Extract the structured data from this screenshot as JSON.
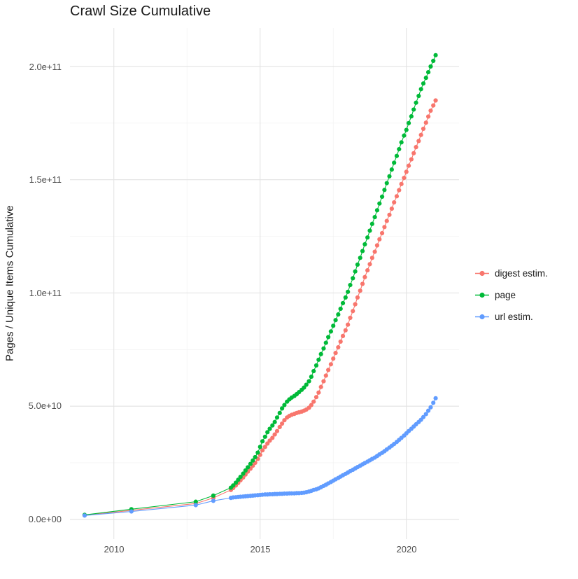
{
  "chart_data": {
    "type": "scatter",
    "title": "Crawl Size Cumulative",
    "xlabel": "",
    "ylabel": "Pages / Unique Items Cumulative",
    "legend_position": "right",
    "grid": true,
    "x_range": [
      2008.5,
      2021.8
    ],
    "y_range_e9": [
      -8.7,
      217
    ],
    "x_ticks": [
      {
        "value": 2010,
        "label": "2010"
      },
      {
        "value": 2015,
        "label": "2015"
      },
      {
        "value": 2020,
        "label": "2020"
      }
    ],
    "y_ticks": [
      {
        "value_e9": 0,
        "label": "0.0e+00"
      },
      {
        "value_e9": 50,
        "label": "5.0e+10"
      },
      {
        "value_e9": 100,
        "label": "1.0e+11"
      },
      {
        "value_e9": 150,
        "label": "1.5e+11"
      },
      {
        "value_e9": 200,
        "label": "2.0e+11"
      }
    ],
    "x_minor_ticks": [
      2012.5,
      2017.5
    ],
    "y_minor_ticks_e9": [
      25,
      75,
      125,
      175
    ],
    "colors": {
      "grid_major": "#e3e3e3",
      "grid_minor": "#f1f1f1",
      "tick_text": "#4d4d4d",
      "title_text": "#1a1a1a"
    },
    "unit_note": "each point is [decimal_year, cumulative_count_in_billions_1e9]",
    "series": [
      {
        "key": "digest",
        "name": "digest estim.",
        "color": "#F8766D",
        "points": [
          [
            2009.0,
            1.8
          ],
          [
            2010.6,
            4.0
          ],
          [
            2012.8,
            7.0
          ],
          [
            2013.4,
            9.5
          ],
          [
            2014.0,
            13.0
          ],
          [
            2014.08,
            13.9
          ],
          [
            2014.17,
            15.0
          ],
          [
            2014.25,
            16.1
          ],
          [
            2014.33,
            17.3
          ],
          [
            2014.42,
            18.5
          ],
          [
            2014.5,
            19.8
          ],
          [
            2014.58,
            21.1
          ],
          [
            2014.67,
            22.4
          ],
          [
            2014.75,
            23.7
          ],
          [
            2014.83,
            25.0
          ],
          [
            2014.92,
            26.7
          ],
          [
            2015.0,
            28.5
          ],
          [
            2015.08,
            30.5
          ],
          [
            2015.17,
            32.0
          ],
          [
            2015.25,
            33.5
          ],
          [
            2015.33,
            34.8
          ],
          [
            2015.42,
            36.0
          ],
          [
            2015.5,
            37.5
          ],
          [
            2015.58,
            39.0
          ],
          [
            2015.67,
            40.8
          ],
          [
            2015.75,
            42.3
          ],
          [
            2015.83,
            43.8
          ],
          [
            2015.92,
            45.0
          ],
          [
            2016.0,
            45.7
          ],
          [
            2016.08,
            46.2
          ],
          [
            2016.17,
            46.6
          ],
          [
            2016.25,
            47.0
          ],
          [
            2016.33,
            47.3
          ],
          [
            2016.42,
            47.6
          ],
          [
            2016.5,
            48.0
          ],
          [
            2016.58,
            48.5
          ],
          [
            2016.67,
            49.3
          ],
          [
            2016.75,
            50.5
          ],
          [
            2016.83,
            52.0
          ],
          [
            2016.92,
            54.0
          ],
          [
            2017.0,
            56.0
          ],
          [
            2017.08,
            58.5
          ],
          [
            2017.17,
            61.0
          ],
          [
            2017.25,
            63.5
          ],
          [
            2017.33,
            66.0
          ],
          [
            2017.42,
            68.5
          ],
          [
            2017.5,
            71.0
          ],
          [
            2017.58,
            73.5
          ],
          [
            2017.67,
            76.0
          ],
          [
            2017.75,
            78.5
          ],
          [
            2017.83,
            81.0
          ],
          [
            2017.92,
            83.5
          ],
          [
            2018.0,
            86.0
          ],
          [
            2018.08,
            89.0
          ],
          [
            2018.17,
            92.0
          ],
          [
            2018.25,
            95.0
          ],
          [
            2018.33,
            98.0
          ],
          [
            2018.42,
            101.0
          ],
          [
            2018.5,
            104.0
          ],
          [
            2018.58,
            107.0
          ],
          [
            2018.67,
            110.0
          ],
          [
            2018.75,
            112.7
          ],
          [
            2018.83,
            115.5
          ],
          [
            2018.92,
            118.2
          ],
          [
            2019.0,
            121.0
          ],
          [
            2019.08,
            123.7
          ],
          [
            2019.17,
            126.4
          ],
          [
            2019.25,
            129.1
          ],
          [
            2019.33,
            131.8
          ],
          [
            2019.42,
            134.5
          ],
          [
            2019.5,
            137.2
          ],
          [
            2019.58,
            140.0
          ],
          [
            2019.67,
            142.7
          ],
          [
            2019.75,
            145.4
          ],
          [
            2019.83,
            148.1
          ],
          [
            2019.92,
            150.8
          ],
          [
            2020.0,
            153.5
          ],
          [
            2020.08,
            156.2
          ],
          [
            2020.17,
            159.0
          ],
          [
            2020.25,
            161.7
          ],
          [
            2020.33,
            164.4
          ],
          [
            2020.42,
            167.1
          ],
          [
            2020.5,
            169.8
          ],
          [
            2020.58,
            172.5
          ],
          [
            2020.67,
            175.2
          ],
          [
            2020.75,
            177.9
          ],
          [
            2020.83,
            180.5
          ],
          [
            2020.92,
            182.8
          ],
          [
            2021.0,
            185.0
          ]
        ]
      },
      {
        "key": "page",
        "name": "page",
        "color": "#00BA38",
        "points": [
          [
            2009.0,
            2.0
          ],
          [
            2010.6,
            4.5
          ],
          [
            2012.8,
            7.8
          ],
          [
            2013.4,
            10.5
          ],
          [
            2014.0,
            14.0
          ],
          [
            2014.08,
            15.0
          ],
          [
            2014.17,
            16.2
          ],
          [
            2014.25,
            17.5
          ],
          [
            2014.33,
            18.8
          ],
          [
            2014.42,
            20.2
          ],
          [
            2014.5,
            21.6
          ],
          [
            2014.58,
            23.0
          ],
          [
            2014.67,
            24.5
          ],
          [
            2014.75,
            26.0
          ],
          [
            2014.83,
            27.5
          ],
          [
            2014.92,
            29.5
          ],
          [
            2015.0,
            32.0
          ],
          [
            2015.08,
            34.5
          ],
          [
            2015.17,
            36.5
          ],
          [
            2015.25,
            38.5
          ],
          [
            2015.33,
            40.0
          ],
          [
            2015.42,
            41.5
          ],
          [
            2015.5,
            43.0
          ],
          [
            2015.58,
            45.0
          ],
          [
            2015.67,
            47.0
          ],
          [
            2015.75,
            49.0
          ],
          [
            2015.83,
            50.5
          ],
          [
            2015.92,
            52.0
          ],
          [
            2016.0,
            53.0
          ],
          [
            2016.08,
            53.8
          ],
          [
            2016.17,
            54.5
          ],
          [
            2016.25,
            55.3
          ],
          [
            2016.33,
            56.2
          ],
          [
            2016.42,
            57.2
          ],
          [
            2016.5,
            58.2
          ],
          [
            2016.58,
            59.5
          ],
          [
            2016.67,
            61.0
          ],
          [
            2016.75,
            63.0
          ],
          [
            2016.83,
            65.5
          ],
          [
            2016.92,
            68.0
          ],
          [
            2017.0,
            70.5
          ],
          [
            2017.08,
            73.0
          ],
          [
            2017.17,
            75.5
          ],
          [
            2017.25,
            78.0
          ],
          [
            2017.33,
            80.5
          ],
          [
            2017.42,
            83.0
          ],
          [
            2017.5,
            85.5
          ],
          [
            2017.58,
            88.0
          ],
          [
            2017.67,
            90.5
          ],
          [
            2017.75,
            93.0
          ],
          [
            2017.83,
            95.5
          ],
          [
            2017.92,
            98.0
          ],
          [
            2018.0,
            100.5
          ],
          [
            2018.08,
            103.5
          ],
          [
            2018.17,
            106.5
          ],
          [
            2018.25,
            109.5
          ],
          [
            2018.33,
            112.5
          ],
          [
            2018.42,
            115.5
          ],
          [
            2018.5,
            118.5
          ],
          [
            2018.58,
            121.5
          ],
          [
            2018.67,
            124.5
          ],
          [
            2018.75,
            127.5
          ],
          [
            2018.83,
            130.5
          ],
          [
            2018.92,
            133.5
          ],
          [
            2019.0,
            136.5
          ],
          [
            2019.08,
            139.5
          ],
          [
            2019.17,
            142.5
          ],
          [
            2019.25,
            145.5
          ],
          [
            2019.33,
            148.5
          ],
          [
            2019.42,
            151.5
          ],
          [
            2019.5,
            154.5
          ],
          [
            2019.58,
            157.5
          ],
          [
            2019.67,
            160.5
          ],
          [
            2019.75,
            163.5
          ],
          [
            2019.83,
            166.5
          ],
          [
            2019.92,
            169.5
          ],
          [
            2020.0,
            172.0
          ],
          [
            2020.08,
            175.0
          ],
          [
            2020.17,
            178.0
          ],
          [
            2020.25,
            181.0
          ],
          [
            2020.33,
            184.0
          ],
          [
            2020.42,
            187.0
          ],
          [
            2020.5,
            190.0
          ],
          [
            2020.58,
            192.5
          ],
          [
            2020.67,
            195.0
          ],
          [
            2020.75,
            197.5
          ],
          [
            2020.83,
            200.0
          ],
          [
            2020.92,
            202.5
          ],
          [
            2021.0,
            205.0
          ]
        ]
      },
      {
        "key": "url",
        "name": "url estim.",
        "color": "#619CFF",
        "points": [
          [
            2009.0,
            1.7
          ],
          [
            2010.6,
            3.5
          ],
          [
            2012.8,
            6.3
          ],
          [
            2013.4,
            8.2
          ],
          [
            2014.0,
            9.5
          ],
          [
            2014.08,
            9.7
          ],
          [
            2014.17,
            9.8
          ],
          [
            2014.25,
            9.9
          ],
          [
            2014.33,
            10.0
          ],
          [
            2014.42,
            10.1
          ],
          [
            2014.5,
            10.2
          ],
          [
            2014.58,
            10.3
          ],
          [
            2014.67,
            10.4
          ],
          [
            2014.75,
            10.5
          ],
          [
            2014.83,
            10.6
          ],
          [
            2014.92,
            10.7
          ],
          [
            2015.0,
            10.8
          ],
          [
            2015.08,
            10.9
          ],
          [
            2015.17,
            11.0
          ],
          [
            2015.25,
            11.0
          ],
          [
            2015.33,
            11.1
          ],
          [
            2015.42,
            11.1
          ],
          [
            2015.5,
            11.2
          ],
          [
            2015.58,
            11.2
          ],
          [
            2015.67,
            11.3
          ],
          [
            2015.75,
            11.3
          ],
          [
            2015.83,
            11.4
          ],
          [
            2015.92,
            11.4
          ],
          [
            2016.0,
            11.5
          ],
          [
            2016.08,
            11.5
          ],
          [
            2016.17,
            11.5
          ],
          [
            2016.25,
            11.6
          ],
          [
            2016.33,
            11.6
          ],
          [
            2016.42,
            11.7
          ],
          [
            2016.5,
            11.8
          ],
          [
            2016.58,
            12.0
          ],
          [
            2016.67,
            12.3
          ],
          [
            2016.75,
            12.6
          ],
          [
            2016.83,
            13.0
          ],
          [
            2016.92,
            13.3
          ],
          [
            2017.0,
            13.7
          ],
          [
            2017.08,
            14.2
          ],
          [
            2017.17,
            14.8
          ],
          [
            2017.25,
            15.3
          ],
          [
            2017.33,
            15.9
          ],
          [
            2017.42,
            16.5
          ],
          [
            2017.5,
            17.1
          ],
          [
            2017.58,
            17.7
          ],
          [
            2017.67,
            18.3
          ],
          [
            2017.75,
            18.9
          ],
          [
            2017.83,
            19.5
          ],
          [
            2017.92,
            20.1
          ],
          [
            2018.0,
            20.7
          ],
          [
            2018.08,
            21.3
          ],
          [
            2018.17,
            21.9
          ],
          [
            2018.25,
            22.5
          ],
          [
            2018.33,
            23.1
          ],
          [
            2018.42,
            23.7
          ],
          [
            2018.5,
            24.3
          ],
          [
            2018.58,
            24.9
          ],
          [
            2018.67,
            25.5
          ],
          [
            2018.75,
            26.1
          ],
          [
            2018.83,
            26.7
          ],
          [
            2018.92,
            27.3
          ],
          [
            2019.0,
            28.0
          ],
          [
            2019.08,
            28.7
          ],
          [
            2019.17,
            29.4
          ],
          [
            2019.25,
            30.1
          ],
          [
            2019.33,
            30.9
          ],
          [
            2019.42,
            31.7
          ],
          [
            2019.5,
            32.5
          ],
          [
            2019.58,
            33.3
          ],
          [
            2019.67,
            34.2
          ],
          [
            2019.75,
            35.1
          ],
          [
            2019.83,
            36.0
          ],
          [
            2019.92,
            37.0
          ],
          [
            2020.0,
            38.0
          ],
          [
            2020.08,
            39.0
          ],
          [
            2020.17,
            40.0
          ],
          [
            2020.25,
            41.0
          ],
          [
            2020.33,
            42.0
          ],
          [
            2020.42,
            43.0
          ],
          [
            2020.5,
            44.0
          ],
          [
            2020.58,
            45.2
          ],
          [
            2020.67,
            46.5
          ],
          [
            2020.75,
            48.0
          ],
          [
            2020.83,
            49.5
          ],
          [
            2020.92,
            51.5
          ],
          [
            2021.0,
            53.5
          ]
        ]
      }
    ]
  }
}
